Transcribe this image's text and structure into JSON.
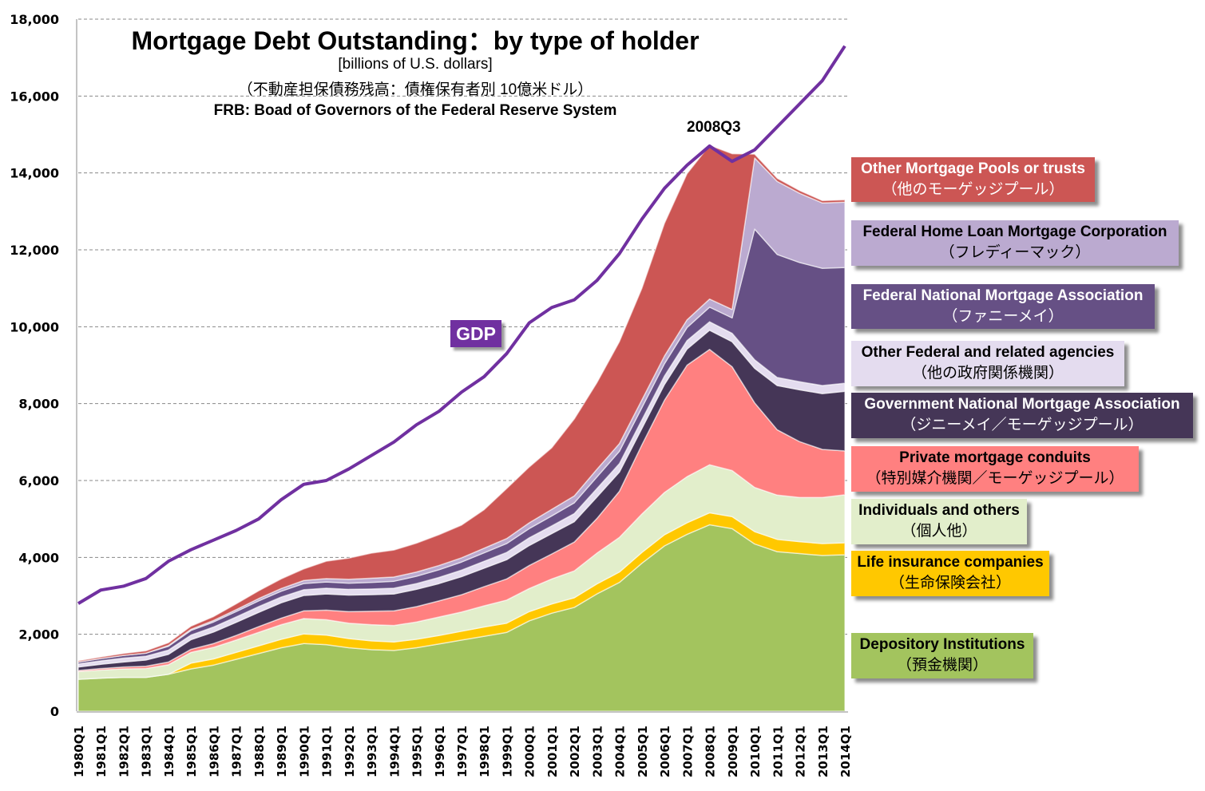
{
  "title": "Mortgage Debt Outstanding：by type of holder",
  "subtitle_units": "[billions of U.S. dollars]",
  "subtitle_ja": "（不動産担保債務残高：債権保有者別  10億米ドル）",
  "source": "FRB: Boad of Governors of the Federal Reserve System",
  "chart_data": {
    "type": "area",
    "stacked": true,
    "title": "Mortgage Debt Outstanding：by type of holder",
    "ylabel": "[billions of U.S. dollars]",
    "ylim": [
      0,
      18000
    ],
    "yticks": [
      "0",
      "2,000",
      "4,000",
      "6,000",
      "8,000",
      "10,000",
      "12,000",
      "14,000",
      "16,000",
      "18,000"
    ],
    "grid": true,
    "legend_placement": "right",
    "categories": [
      "1980Q1",
      "1981Q1",
      "1982Q1",
      "1983Q1",
      "1984Q1",
      "1985Q1",
      "1986Q1",
      "1987Q1",
      "1988Q1",
      "1989Q1",
      "1990Q1",
      "1991Q1",
      "1992Q1",
      "1993Q1",
      "1994Q1",
      "1995Q1",
      "1996Q1",
      "1997Q1",
      "1998Q1",
      "1999Q1",
      "2000Q1",
      "2001Q1",
      "2002Q1",
      "2003Q1",
      "2004Q1",
      "2005Q1",
      "2006Q1",
      "2007Q1",
      "2008Q1",
      "2009Q1",
      "2010Q1",
      "2011Q1",
      "2012Q1",
      "2013Q1",
      "2014Q1"
    ],
    "series": [
      {
        "name": "Depository Institutions",
        "name_ja": "（預金機関）",
        "color": "#a3c45e",
        "text_color": "#000000",
        "values": [
          830,
          860,
          880,
          880,
          960,
          1100,
          1200,
          1350,
          1500,
          1650,
          1760,
          1730,
          1650,
          1600,
          1580,
          1650,
          1750,
          1850,
          1950,
          2050,
          2350,
          2550,
          2700,
          3050,
          3350,
          3850,
          4300,
          4600,
          4850,
          4750,
          4350,
          4150,
          4100,
          4050,
          4070
        ]
      },
      {
        "name": "Life insurance companies",
        "name_ja": "（生命保険会社）",
        "color": "#ffc800",
        "text_color": "#000000",
        "values": [
          0,
          0,
          0,
          0,
          0,
          150,
          160,
          180,
          200,
          220,
          250,
          250,
          240,
          230,
          220,
          220,
          220,
          230,
          240,
          240,
          240,
          240,
          250,
          260,
          270,
          280,
          290,
          300,
          310,
          310,
          320,
          320,
          310,
          310,
          310
        ]
      },
      {
        "name": "Individuals and others",
        "name_ja": "（個人他）",
        "color": "#e2eecb",
        "text_color": "#000000",
        "values": [
          200,
          210,
          220,
          230,
          250,
          280,
          300,
          320,
          350,
          380,
          400,
          400,
          400,
          420,
          430,
          450,
          480,
          500,
          550,
          600,
          600,
          650,
          700,
          800,
          900,
          1000,
          1100,
          1200,
          1250,
          1200,
          1150,
          1150,
          1150,
          1200,
          1250
        ]
      },
      {
        "name": "Private mortgage conduits",
        "name_ja": "（特別媒介機関／モーゲッジプール）",
        "color": "#ff8080",
        "text_color": "#000000",
        "values": [
          30,
          40,
          50,
          60,
          70,
          80,
          100,
          120,
          150,
          170,
          200,
          250,
          300,
          350,
          380,
          400,
          420,
          450,
          500,
          550,
          600,
          650,
          750,
          900,
          1200,
          1800,
          2400,
          2900,
          3000,
          2700,
          2200,
          1700,
          1450,
          1250,
          1140
        ]
      },
      {
        "name": "Government National Mortgage Association",
        "name_ja": "（ジニーメイ／モーゲッジプール）",
        "color": "#453657",
        "text_color": "#ffffff",
        "values": [
          90,
          110,
          130,
          160,
          200,
          250,
          300,
          340,
          370,
          400,
          400,
          420,
          430,
          430,
          440,
          450,
          450,
          470,
          480,
          500,
          520,
          530,
          530,
          560,
          500,
          430,
          410,
          420,
          500,
          650,
          900,
          1150,
          1350,
          1450,
          1550
        ]
      },
      {
        "name": "Other Federal and related agencies",
        "name_ja": "（他の政府関係機関）",
        "color": "#e4dcef",
        "text_color": "#000000",
        "values": [
          80,
          90,
          100,
          100,
          110,
          120,
          130,
          140,
          150,
          150,
          150,
          150,
          150,
          150,
          150,
          150,
          160,
          170,
          180,
          190,
          200,
          200,
          210,
          220,
          220,
          220,
          220,
          220,
          220,
          220,
          220,
          210,
          210,
          210,
          210
        ]
      },
      {
        "name": "Federal National Mortgage Association",
        "name_ja": "（ファニーメイ）",
        "color": "#665085",
        "text_color": "#ffffff",
        "values": [
          50,
          60,
          70,
          80,
          100,
          120,
          130,
          140,
          150,
          150,
          160,
          160,
          160,
          170,
          180,
          190,
          200,
          210,
          220,
          230,
          240,
          260,
          280,
          300,
          320,
          320,
          320,
          340,
          380,
          400,
          3400,
          3200,
          3100,
          3050,
          3010
        ]
      },
      {
        "name": "Federal Home Loan Mortgage Corporation",
        "name_ja": "（フレディーマック）",
        "color": "#bbaad0",
        "text_color": "#000000",
        "values": [
          0,
          0,
          0,
          0,
          20,
          30,
          40,
          50,
          60,
          70,
          80,
          90,
          100,
          110,
          110,
          110,
          110,
          110,
          120,
          130,
          150,
          170,
          180,
          200,
          200,
          200,
          200,
          200,
          210,
          220,
          1850,
          1900,
          1800,
          1700,
          1700
        ]
      },
      {
        "name": "Other Mortgage Pools or trusts",
        "name_ja": "（他のモーゲッジプール）",
        "color": "#cc5654",
        "text_color": "#ffffff",
        "values": [
          30,
          40,
          50,
          60,
          70,
          80,
          100,
          150,
          200,
          250,
          300,
          450,
          550,
          650,
          700,
          750,
          800,
          850,
          1000,
          1300,
          1450,
          1600,
          2000,
          2250,
          2650,
          2900,
          3450,
          3800,
          4000,
          4050,
          100,
          80,
          70,
          60,
          60
        ]
      }
    ],
    "line_series": {
      "name": "GDP",
      "color": "#7030a0",
      "values": [
        2800,
        3150,
        3250,
        3450,
        3900,
        4200,
        4450,
        4700,
        5000,
        5500,
        5900,
        6000,
        6300,
        6650,
        7000,
        7450,
        7800,
        8300,
        8700,
        9300,
        10100,
        10500,
        10700,
        11200,
        11900,
        12800,
        13600,
        14200,
        14700,
        14300,
        14600,
        15200,
        15800,
        16400,
        17300
      ]
    },
    "annotations": {
      "gdp_label": "GDP",
      "peak_label": "2008Q3"
    }
  }
}
